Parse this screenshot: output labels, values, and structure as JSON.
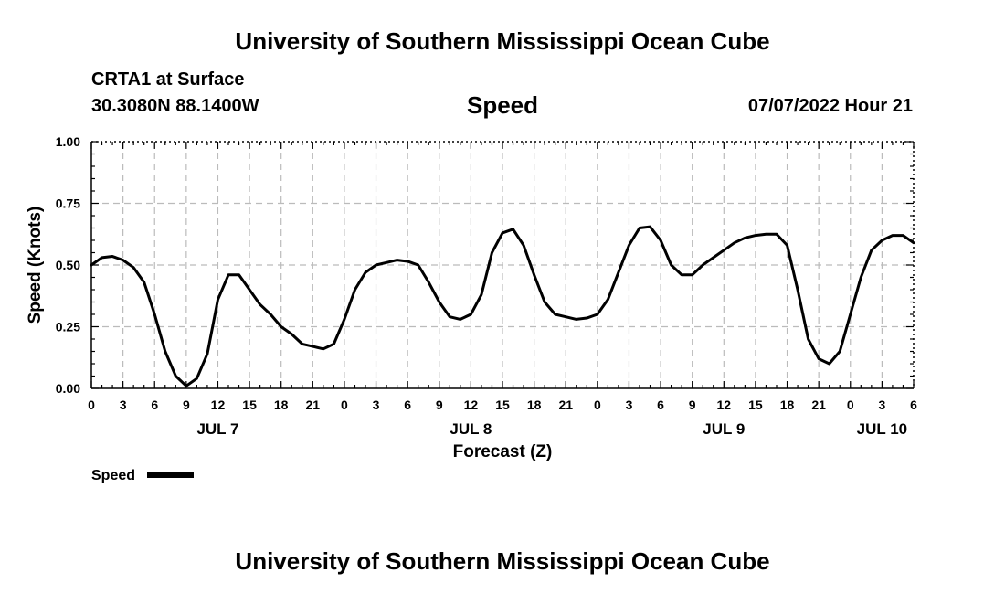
{
  "header": {
    "title": "University of Southern Mississippi Ocean Cube",
    "station": "CRTA1 at Surface",
    "coords": "30.3080N  88.1400W",
    "variable": "Speed",
    "datetime": "07/07/2022 Hour 21"
  },
  "footer": {
    "title": "University of Southern Mississippi Ocean Cube"
  },
  "colors": {
    "line": "#000000",
    "grid": "#bbbbbb",
    "axis": "#000000"
  },
  "chart_data": {
    "type": "line",
    "title": "Speed",
    "xlabel": "Forecast (Z)",
    "ylabel": "Speed (Knots)",
    "xlim": [
      0,
      78
    ],
    "ylim": [
      0,
      1
    ],
    "x_unit": "hours from JUL 7 00Z",
    "x_ticks": [
      0,
      3,
      6,
      9,
      12,
      15,
      18,
      21,
      24,
      27,
      30,
      33,
      36,
      39,
      42,
      45,
      48,
      51,
      54,
      57,
      60,
      63,
      66,
      69,
      72,
      75,
      78
    ],
    "x_tick_labels": [
      "0",
      "3",
      "6",
      "9",
      "12",
      "15",
      "18",
      "21",
      "0",
      "3",
      "6",
      "9",
      "12",
      "15",
      "18",
      "21",
      "0",
      "3",
      "6",
      "9",
      "12",
      "15",
      "18",
      "21",
      "0",
      "3",
      "6"
    ],
    "y_ticks": [
      0,
      0.25,
      0.5,
      0.75,
      1.0
    ],
    "y_tick_labels": [
      "0.00",
      "0.25",
      "0.50",
      "0.75",
      "1.00"
    ],
    "date_labels": [
      {
        "x": 12,
        "label": "JUL 7"
      },
      {
        "x": 36,
        "label": "JUL 8"
      },
      {
        "x": 60,
        "label": "JUL 9"
      },
      {
        "x": 75,
        "label": "JUL 10"
      }
    ],
    "legend": {
      "label": "Speed",
      "position": "bottom-left"
    },
    "series": [
      {
        "name": "Speed",
        "x": [
          0,
          1,
          2,
          3,
          4,
          5,
          6,
          7,
          8,
          9,
          10,
          11,
          12,
          13,
          14,
          15,
          16,
          17,
          18,
          19,
          20,
          21,
          22,
          23,
          24,
          25,
          26,
          27,
          28,
          29,
          30,
          31,
          32,
          33,
          34,
          35,
          36,
          37,
          38,
          39,
          40,
          41,
          42,
          43,
          44,
          45,
          46,
          47,
          48,
          49,
          50,
          51,
          52,
          53,
          54,
          55,
          56,
          57,
          58,
          59,
          60,
          61,
          62,
          63,
          64,
          65,
          66,
          67,
          68,
          69,
          70,
          71,
          72,
          73,
          74,
          75,
          76,
          77,
          78
        ],
        "values": [
          0.5,
          0.53,
          0.535,
          0.52,
          0.49,
          0.43,
          0.3,
          0.15,
          0.05,
          0.01,
          0.04,
          0.14,
          0.36,
          0.46,
          0.46,
          0.4,
          0.34,
          0.3,
          0.25,
          0.22,
          0.18,
          0.17,
          0.16,
          0.18,
          0.28,
          0.4,
          0.47,
          0.5,
          0.51,
          0.52,
          0.515,
          0.5,
          0.43,
          0.35,
          0.29,
          0.28,
          0.3,
          0.38,
          0.55,
          0.63,
          0.645,
          0.58,
          0.46,
          0.35,
          0.3,
          0.29,
          0.28,
          0.285,
          0.3,
          0.36,
          0.47,
          0.58,
          0.65,
          0.655,
          0.6,
          0.5,
          0.46,
          0.46,
          0.5,
          0.53,
          0.56,
          0.59,
          0.61,
          0.62,
          0.625,
          0.625,
          0.58,
          0.4,
          0.2,
          0.12,
          0.1,
          0.15,
          0.3,
          0.45,
          0.56,
          0.6,
          0.62,
          0.62,
          0.59
        ]
      }
    ]
  }
}
